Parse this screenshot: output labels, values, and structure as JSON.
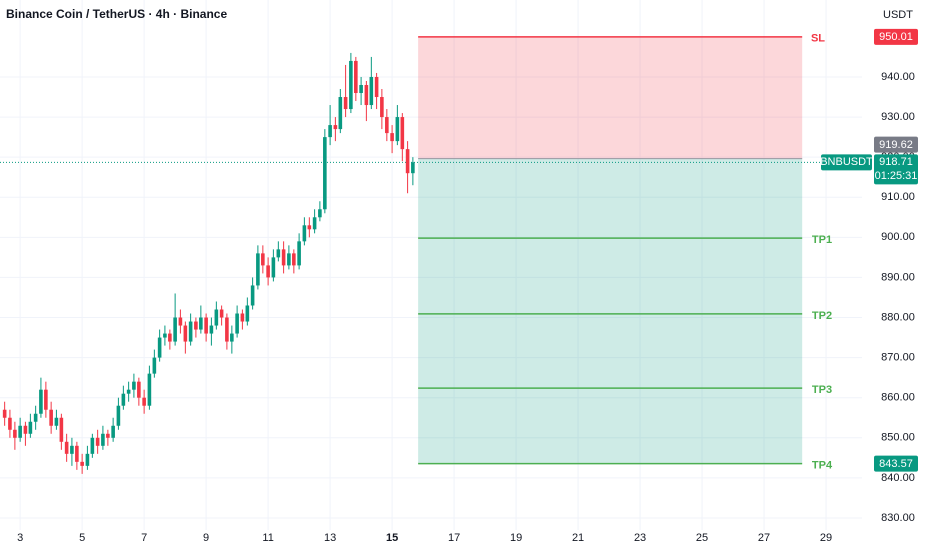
{
  "chart_data": {
    "type": "candlestick",
    "title": "Binance Coin / TetherUS · 4h · Binance",
    "y_axis_label": "USDT",
    "up_color": "#089981",
    "down_color": "#f23645",
    "grid": true,
    "x": [
      2.5,
      2.67,
      2.83,
      3,
      3.17,
      3.33,
      3.5,
      3.67,
      3.83,
      4,
      4.17,
      4.33,
      4.5,
      4.67,
      4.83,
      5,
      5.17,
      5.33,
      5.5,
      5.67,
      5.83,
      6,
      6.17,
      6.33,
      6.5,
      6.67,
      6.83,
      7,
      7.17,
      7.33,
      7.5,
      7.67,
      7.83,
      8,
      8.17,
      8.33,
      8.5,
      8.67,
      8.83,
      9,
      9.17,
      9.33,
      9.5,
      9.67,
      9.83,
      10,
      10.17,
      10.33,
      10.5,
      10.67,
      10.83,
      11,
      11.17,
      11.33,
      11.5,
      11.67,
      11.83,
      12,
      12.17,
      12.33,
      12.5,
      12.67,
      12.83,
      13,
      13.17,
      13.33,
      13.5,
      13.67,
      13.83,
      14,
      14.17,
      14.33,
      14.5,
      14.67,
      14.83,
      15,
      15.17,
      15.33,
      15.5,
      15.67
    ],
    "candles": [
      [
        857,
        859,
        853,
        855
      ],
      [
        855,
        857,
        850,
        852
      ],
      [
        852,
        854,
        847,
        850
      ],
      [
        850,
        855,
        849,
        853
      ],
      [
        853,
        854,
        848,
        851
      ],
      [
        851,
        856,
        850,
        854
      ],
      [
        854,
        858,
        852,
        856
      ],
      [
        856,
        865,
        855,
        862
      ],
      [
        862,
        864,
        855,
        857
      ],
      [
        857,
        859,
        851,
        853
      ],
      [
        853,
        857,
        852,
        855
      ],
      [
        855,
        856,
        847,
        849
      ],
      [
        849,
        851,
        844,
        846
      ],
      [
        846,
        850,
        843,
        848
      ],
      [
        848,
        849,
        842,
        844
      ],
      [
        844,
        846,
        841,
        843
      ],
      [
        843,
        848,
        842,
        846
      ],
      [
        846,
        851,
        845,
        850
      ],
      [
        850,
        852,
        846,
        848
      ],
      [
        848,
        853,
        847,
        851
      ],
      [
        851,
        852,
        848,
        850
      ],
      [
        850,
        855,
        849,
        853
      ],
      [
        853,
        860,
        852,
        858
      ],
      [
        858,
        863,
        857,
        861
      ],
      [
        861,
        864,
        859,
        862
      ],
      [
        862,
        866,
        860,
        864
      ],
      [
        864,
        865,
        858,
        860
      ],
      [
        860,
        862,
        856,
        858
      ],
      [
        858,
        868,
        857,
        866
      ],
      [
        866,
        872,
        865,
        870
      ],
      [
        870,
        877,
        869,
        875
      ],
      [
        875,
        878,
        873,
        876
      ],
      [
        876,
        877,
        872,
        874
      ],
      [
        874,
        886,
        873,
        880
      ],
      [
        880,
        882,
        876,
        878
      ],
      [
        878,
        879,
        871,
        874
      ],
      [
        874,
        881,
        873,
        879
      ],
      [
        879,
        880,
        875,
        877
      ],
      [
        877,
        883,
        876,
        880
      ],
      [
        880,
        881,
        874,
        876
      ],
      [
        876,
        880,
        873,
        878
      ],
      [
        878,
        884,
        877,
        882
      ],
      [
        882,
        883,
        878,
        880
      ],
      [
        880,
        881,
        872,
        874
      ],
      [
        874,
        878,
        871,
        876
      ],
      [
        876,
        883,
        875,
        881
      ],
      [
        881,
        882,
        877,
        879
      ],
      [
        879,
        885,
        878,
        883
      ],
      [
        883,
        890,
        882,
        888
      ],
      [
        888,
        898,
        887,
        896
      ],
      [
        896,
        898,
        891,
        893
      ],
      [
        893,
        895,
        888,
        890
      ],
      [
        890,
        897,
        889,
        895
      ],
      [
        895,
        899,
        894,
        897
      ],
      [
        897,
        899,
        891,
        893
      ],
      [
        893,
        898,
        892,
        896
      ],
      [
        896,
        897,
        891,
        893
      ],
      [
        893,
        901,
        892,
        899
      ],
      [
        899,
        905,
        898,
        903
      ],
      [
        903,
        905,
        900,
        902
      ],
      [
        902,
        907,
        901,
        905
      ],
      [
        905,
        909,
        904,
        907
      ],
      [
        907,
        927,
        906,
        925
      ],
      [
        925,
        933,
        923,
        928
      ],
      [
        928,
        930,
        924,
        927
      ],
      [
        927,
        937,
        926,
        935
      ],
      [
        935,
        943,
        930,
        932
      ],
      [
        932,
        946,
        931,
        944
      ],
      [
        944,
        945,
        934,
        936
      ],
      [
        936,
        940,
        933,
        938
      ],
      [
        938,
        939,
        929,
        933
      ],
      [
        933,
        945,
        932,
        940
      ],
      [
        940,
        941,
        932,
        935
      ],
      [
        935,
        937,
        927,
        930
      ],
      [
        930,
        932,
        924,
        926
      ],
      [
        926,
        928,
        921,
        924
      ],
      [
        924,
        933,
        923,
        930
      ],
      [
        930,
        931,
        919,
        922
      ],
      [
        922,
        924,
        911,
        916
      ],
      [
        916,
        920,
        913,
        918.71
      ]
    ],
    "xlim": [
      2.35,
      30.16
    ],
    "xticks": [
      3,
      5,
      7,
      9,
      11,
      13,
      15,
      17,
      19,
      21,
      23,
      25,
      27,
      29
    ],
    "highlight_xtick": 15,
    "ylim": [
      827,
      959.2
    ],
    "yticks": [
      {
        "value": 830,
        "label": "830.00"
      },
      {
        "value": 840,
        "label": "840.00"
      },
      {
        "value": 850,
        "label": "850.00"
      },
      {
        "value": 860,
        "label": "860.00"
      },
      {
        "value": 870,
        "label": "870.00"
      },
      {
        "value": 880,
        "label": "880.00"
      },
      {
        "value": 890,
        "label": "890.00"
      },
      {
        "value": 900,
        "label": "900.00"
      },
      {
        "value": 910,
        "label": "910.00"
      },
      {
        "value": 920,
        "label": "920.00"
      },
      {
        "value": 930,
        "label": "930.00"
      },
      {
        "value": 940,
        "label": "940.00"
      }
    ],
    "position": {
      "x_range": [
        15.84,
        28.23
      ],
      "entry": {
        "value": 919.62,
        "label": "919.62"
      },
      "stop_loss": {
        "name": "SL",
        "value": 950.01,
        "label": "950.01"
      },
      "targets": [
        {
          "name": "TP1",
          "value": 899.8
        },
        {
          "name": "TP2",
          "value": 880.9
        },
        {
          "name": "TP3",
          "value": 862.4
        },
        {
          "name": "TP4",
          "value": 843.57,
          "label": "843.57"
        }
      ]
    },
    "last_price": {
      "symbol": "BNBUSDT",
      "value": 918.71,
      "label": "918.71",
      "countdown": "01:25:31"
    }
  }
}
